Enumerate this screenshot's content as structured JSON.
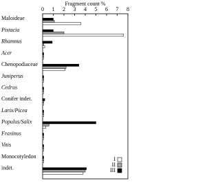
{
  "chart_data": {
    "type": "hbar",
    "title": "Fragment count %",
    "categories": [
      "Maloideae",
      "Pistacia",
      "Rhamnus",
      "Acer",
      "Chenopodiaceae",
      "Juniperus",
      "Cedrus",
      "Conifer indet.",
      "Larix/Picea",
      "Populus/Salix",
      "Fraxinus",
      "Vitis",
      "Monocotyledon",
      "indet."
    ],
    "series": [
      {
        "name": "III",
        "color": "#000000",
        "values": [
          1.0,
          1.0,
          0.9,
          0.1,
          3.4,
          0.1,
          0.1,
          0.2,
          0.1,
          5.0,
          0.1,
          0.1,
          0.1,
          4.1
        ]
      },
      {
        "name": "II",
        "color": "#a6a6a6",
        "values": [
          1.1,
          2.0,
          0.1,
          0.1,
          2.2,
          0.1,
          0.1,
          0.1,
          0.1,
          0.6,
          0.1,
          0.1,
          0.1,
          4.0
        ]
      },
      {
        "name": "I",
        "color": "#ffffff",
        "values": [
          3.6,
          7.6,
          0.2,
          0.1,
          2.1,
          0.1,
          0.1,
          0.1,
          0.1,
          0.3,
          0.1,
          0.1,
          0.1,
          3.8
        ]
      }
    ],
    "xlim": [
      0,
      8
    ],
    "xticks": [
      0,
      1,
      2,
      3,
      4,
      5,
      6,
      7,
      8
    ]
  }
}
